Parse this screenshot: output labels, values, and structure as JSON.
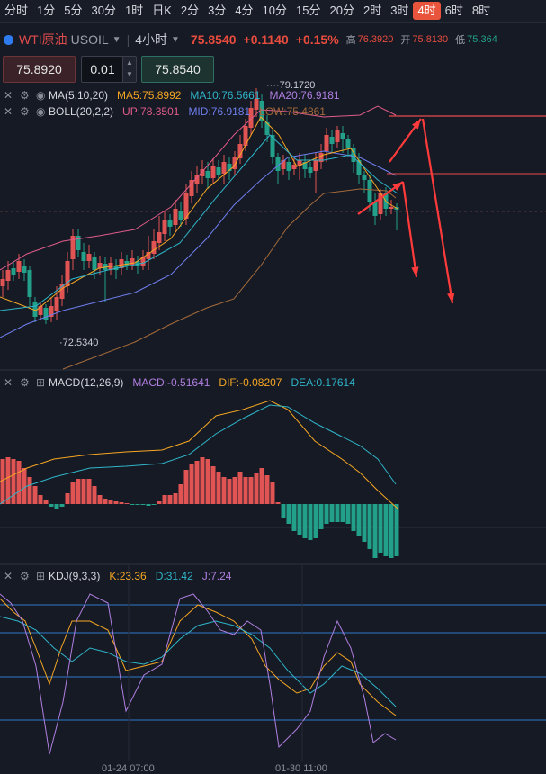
{
  "tabs": [
    "分时",
    "1分",
    "5分",
    "30分",
    "1时",
    "日K",
    "2分",
    "3分",
    "4分",
    "10分",
    "15分",
    "20分",
    "2时",
    "3时",
    "4时",
    "6时",
    "8时"
  ],
  "active_tab": "4时",
  "quote": {
    "name": "WTI原油",
    "code": "USOIL",
    "timeframe": "4小时",
    "price": "75.8540",
    "change": "+0.1140",
    "change_pct": "+0.15%",
    "high_label": "高",
    "high": "76.3920",
    "open_label": "开",
    "open": "75.8130",
    "low_label": "低",
    "low": "75.364"
  },
  "trade": {
    "sell_price": "75.8920",
    "quantity": "0.01",
    "buy_price": "75.8540"
  },
  "indicators": {
    "ma": {
      "name": "MA(5,10,20)",
      "ma5": "MA5:75.8992",
      "ma10": "MA10:76.5661",
      "ma20": "MA20:76.9181"
    },
    "boll": {
      "name": "BOLL(20,2,2)",
      "up": "UP:78.3501",
      "mid": "MID:76.9181",
      "low": "LOW:75.4861"
    },
    "macd": {
      "name": "MACD(12,26,9)",
      "macd": "MACD:-0.51641",
      "dif": "DIF:-0.08207",
      "dea": "DEA:0.17614"
    },
    "kdj": {
      "name": "KDJ(9,3,3)",
      "k": "K:23.36",
      "d": "D:31.42",
      "j": "J:7.24"
    }
  },
  "annotations": {
    "high_marker": "79.1720",
    "low_marker": "72.5340"
  },
  "time_labels": [
    "01-24 07:00",
    "01-30 11:00"
  ],
  "colors": {
    "up": "#e05454",
    "down": "#22a08a",
    "ma5": "#f5a623",
    "ma10": "#2fb5c9",
    "ma20": "#b07fe0",
    "accent": "#e8553c"
  }
}
